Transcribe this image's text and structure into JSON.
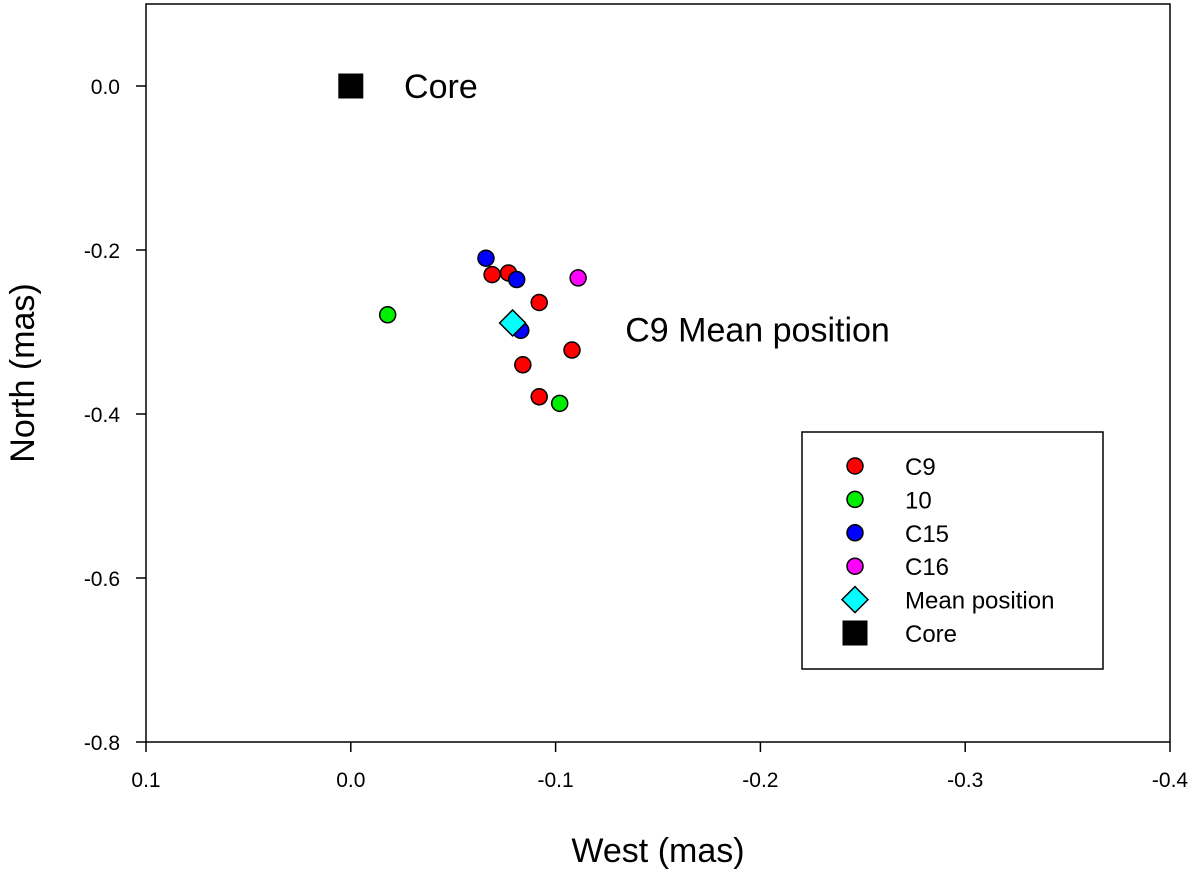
{
  "chart_data": {
    "type": "scatter",
    "title": "",
    "xlabel": "West (mas)",
    "ylabel": "North (mas)",
    "xlim": [
      0.1,
      -0.4
    ],
    "ylim": [
      -0.8,
      0.1
    ],
    "x_ticks": [
      0.1,
      0.0,
      -0.1,
      -0.2,
      -0.3,
      -0.4
    ],
    "x_tick_labels": [
      "0.1",
      "0.0",
      "-0.1",
      "-0.2",
      "-0.3",
      "-0.4"
    ],
    "y_ticks": [
      0.0,
      -0.2,
      -0.4,
      -0.6,
      -0.8
    ],
    "y_tick_labels": [
      "0.0",
      "-0.2",
      "-0.4",
      "-0.6",
      "-0.8"
    ],
    "grid": false,
    "legend_position": "lower-right",
    "series": [
      {
        "name": "C9",
        "marker": "circle",
        "color": "#ff0000",
        "points": [
          {
            "x": -0.069,
            "y": -0.23
          },
          {
            "x": -0.077,
            "y": -0.228
          },
          {
            "x": -0.092,
            "y": -0.264
          },
          {
            "x": -0.108,
            "y": -0.322
          },
          {
            "x": -0.084,
            "y": -0.34
          },
          {
            "x": -0.092,
            "y": -0.379
          }
        ]
      },
      {
        "name": "10",
        "marker": "circle",
        "color": "#00ee00",
        "points": [
          {
            "x": -0.018,
            "y": -0.279
          },
          {
            "x": -0.102,
            "y": -0.387
          }
        ]
      },
      {
        "name": "C15",
        "marker": "circle",
        "color": "#0000ff",
        "points": [
          {
            "x": -0.066,
            "y": -0.21
          },
          {
            "x": -0.081,
            "y": -0.236
          },
          {
            "x": -0.083,
            "y": -0.298
          }
        ]
      },
      {
        "name": "C16",
        "marker": "circle",
        "color": "#ff00ff",
        "points": [
          {
            "x": -0.111,
            "y": -0.234
          }
        ]
      },
      {
        "name": "Mean position",
        "marker": "diamond",
        "color": "#00ffff",
        "points": [
          {
            "x": -0.079,
            "y": -0.289
          }
        ]
      },
      {
        "name": "Core",
        "marker": "square",
        "color": "#000000",
        "points": [
          {
            "x": 0.0,
            "y": 0.0
          }
        ]
      }
    ],
    "annotations": [
      {
        "text": "Core",
        "x": -0.026,
        "y": 0.0
      },
      {
        "text": "C9 Mean position",
        "x": -0.134,
        "y": -0.297
      }
    ]
  }
}
